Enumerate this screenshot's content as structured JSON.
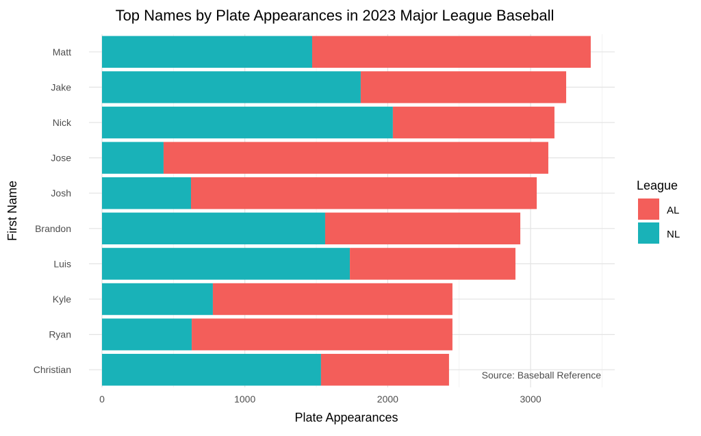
{
  "chart_data": {
    "type": "bar",
    "orientation": "horizontal",
    "stacked": true,
    "title": "Top Names by Plate Appearances in 2023 Major League Baseball",
    "xlabel": "Plate Appearances",
    "ylabel": "First Name",
    "categories": [
      "Matt",
      "Jake",
      "Nick",
      "Jose",
      "Josh",
      "Brandon",
      "Luis",
      "Kyle",
      "Ryan",
      "Christian"
    ],
    "series": [
      {
        "name": "NL",
        "color": "#19B2B8",
        "values": [
          1471,
          1811,
          2036,
          431,
          623,
          1562,
          1735,
          776,
          628,
          1533
        ]
      },
      {
        "name": "AL",
        "color": "#F35E5A",
        "values": [
          1950,
          1438,
          1131,
          2693,
          2420,
          1366,
          1159,
          1677,
          1825,
          896
        ]
      }
    ],
    "xlim": [
      -91,
      3589
    ],
    "xticks": [
      0,
      1000,
      2000,
      3000
    ],
    "xtick_labels": [
      "0",
      "1000",
      "2000",
      "3000"
    ],
    "grid": true,
    "legend": {
      "title": "League",
      "entries": [
        "AL",
        "NL"
      ],
      "placement": "right"
    },
    "annotation": "Source: Baseball Reference"
  }
}
